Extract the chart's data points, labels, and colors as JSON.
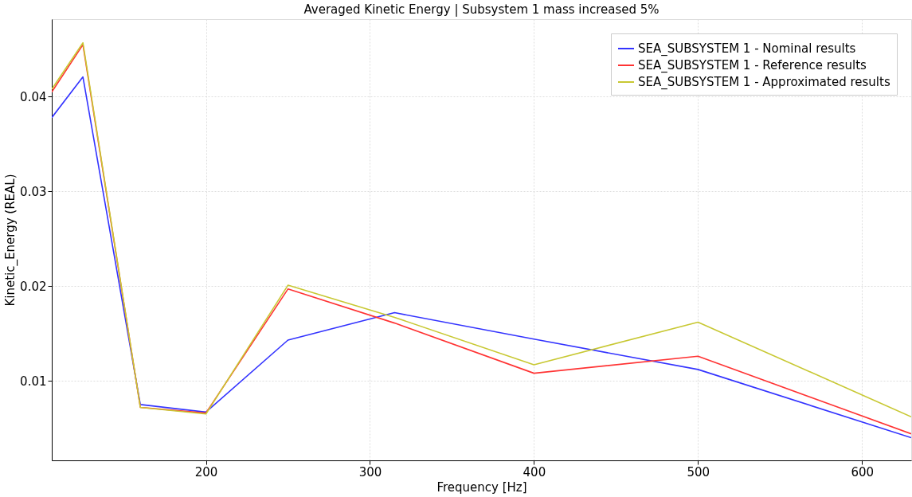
{
  "chart_data": {
    "type": "line",
    "title": "Averaged Kinetic Energy | Subsystem 1 mass increased 5%",
    "xlabel": "Frequency [Hz]",
    "ylabel": "Kinetic_Energy (REAL)",
    "x": [
      106,
      125,
      160,
      200,
      250,
      315,
      400,
      500,
      630
    ],
    "series": [
      {
        "name": "SEA_SUBSYSTEM 1 - Nominal results",
        "color": "#3333ff",
        "values": [
          0.0378,
          0.0421,
          0.0075,
          0.0067,
          0.0143,
          0.0172,
          0.0144,
          0.0112,
          0.004
        ]
      },
      {
        "name": "SEA_SUBSYSTEM 1 - Reference results",
        "color": "#ff3333",
        "values": [
          0.0405,
          0.0455,
          0.0072,
          0.0066,
          0.0197,
          0.0161,
          0.0108,
          0.0126,
          0.0044
        ]
      },
      {
        "name": "SEA_SUBSYSTEM 1 - Approximated results",
        "color": "#c8c832",
        "values": [
          0.0408,
          0.0457,
          0.0072,
          0.0065,
          0.0201,
          0.0167,
          0.0117,
          0.0162,
          0.0062
        ]
      }
    ],
    "xlim": [
      106,
      630
    ],
    "ylim": [
      0.0016,
      0.0482
    ],
    "xticks": [
      200,
      300,
      400,
      500,
      600
    ],
    "yticks": [
      0.01,
      0.02,
      0.03,
      0.04
    ],
    "grid": true,
    "legend": "top right",
    "line_style": "solid",
    "marker": "none"
  }
}
